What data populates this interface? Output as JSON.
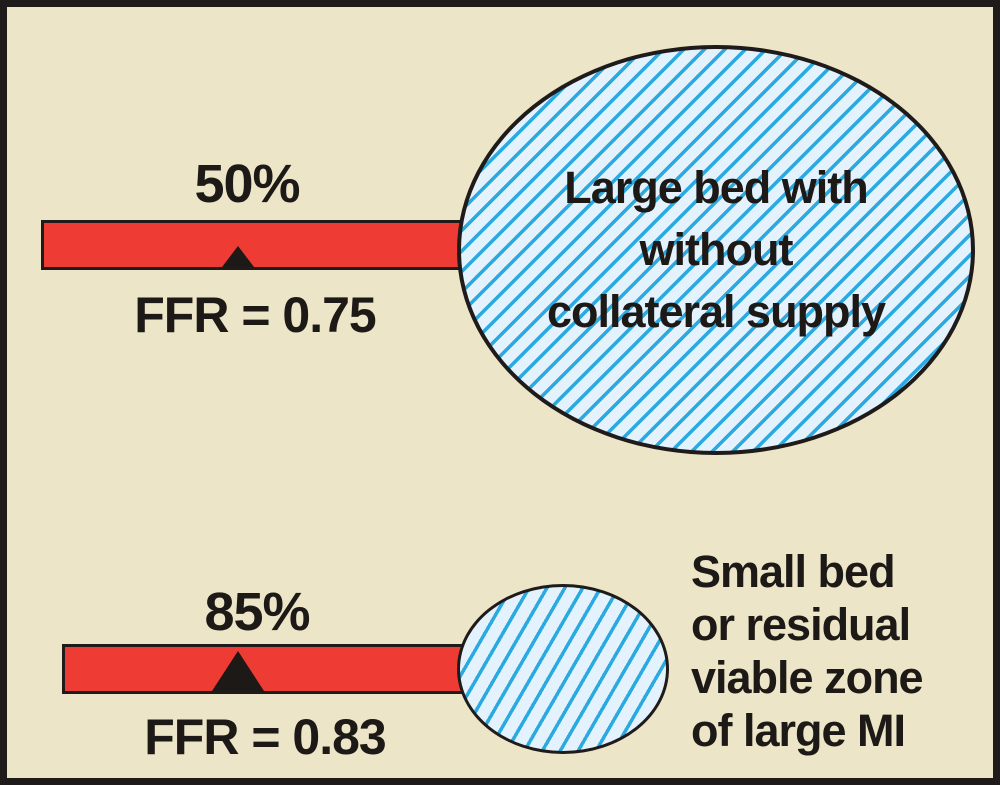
{
  "colors": {
    "background": "#EDE5C7",
    "frame_border": "#1E1B1A",
    "vessel_red": "#EE3B33",
    "bed_fill_light_blue": "#E3F2FC",
    "bed_stripe_blue": "#2BA9E1",
    "text_black": "#1C1917"
  },
  "top": {
    "stenosis_percent": "50%",
    "ffr_label": "FFR = 0.75",
    "bed_label_lines": [
      "Large bed with",
      "without",
      "collateral supply"
    ]
  },
  "bottom": {
    "stenosis_percent": "85%",
    "ffr_label": "FFR = 0.83",
    "bed_label_lines": [
      "Small bed",
      "or residual",
      "viable zone",
      "of large MI"
    ]
  }
}
